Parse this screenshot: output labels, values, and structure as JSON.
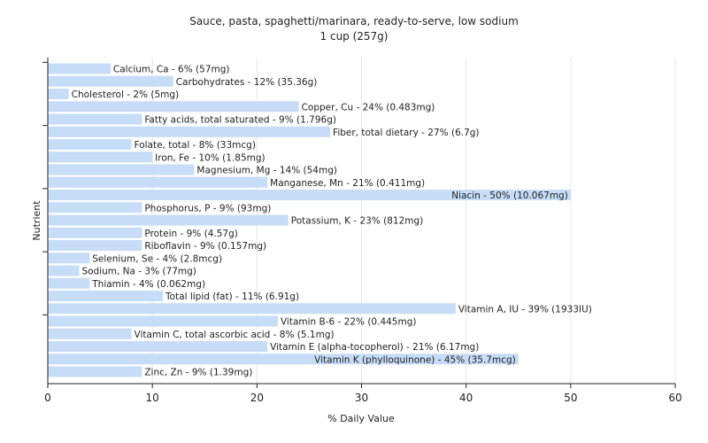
{
  "chart_data": {
    "type": "bar",
    "orientation": "horizontal",
    "title": "Sauce, pasta, spaghetti/marinara, ready-to-serve, low sodium",
    "subtitle": "1 cup (257g)",
    "xlabel": "% Daily Value",
    "ylabel": "Nutrient",
    "xlim": [
      0,
      60
    ],
    "xticks": [
      "0",
      "10",
      "20",
      "30",
      "40",
      "50",
      "60"
    ],
    "grid": true,
    "bar_color": "#c6dcf7",
    "categories": [
      "Calcium, Ca",
      "Carbohydrates",
      "Cholesterol",
      "Copper, Cu",
      "Fatty acids, total saturated",
      "Fiber, total dietary",
      "Folate, total",
      "Iron, Fe",
      "Magnesium, Mg",
      "Manganese, Mn",
      "Niacin",
      "Phosphorus, P",
      "Potassium, K",
      "Protein",
      "Riboflavin",
      "Selenium, Se",
      "Sodium, Na",
      "Thiamin",
      "Total lipid (fat)",
      "Vitamin A, IU",
      "Vitamin B-6",
      "Vitamin C, total ascorbic acid",
      "Vitamin E (alpha-tocopherol)",
      "Vitamin K (phylloquinone)",
      "Zinc, Zn"
    ],
    "values": [
      6,
      12,
      2,
      24,
      9,
      27,
      8,
      10,
      14,
      21,
      50,
      9,
      23,
      9,
      9,
      4,
      3,
      4,
      11,
      39,
      22,
      8,
      21,
      45,
      9
    ],
    "labels": [
      "Calcium, Ca - 6% (57mg)",
      "Carbohydrates - 12% (35.36g)",
      "Cholesterol - 2% (5mg)",
      "Copper, Cu - 24% (0.483mg)",
      "Fatty acids, total saturated - 9% (1.796g)",
      "Fiber, total dietary - 27% (6.7g)",
      "Folate, total - 8% (33mcg)",
      "Iron, Fe - 10% (1.85mg)",
      "Magnesium, Mg - 14% (54mg)",
      "Manganese, Mn - 21% (0.411mg)",
      "Niacin - 50% (10.067mg)",
      "Phosphorus, P - 9% (93mg)",
      "Potassium, K - 23% (812mg)",
      "Protein - 9% (4.57g)",
      "Riboflavin - 9% (0.157mg)",
      "Selenium, Se - 4% (2.8mcg)",
      "Sodium, Na - 3% (77mg)",
      "Thiamin - 4% (0.062mg)",
      "Total lipid (fat) - 11% (6.91g)",
      "Vitamin A, IU - 39% (1933IU)",
      "Vitamin B-6 - 22% (0.445mg)",
      "Vitamin C, total ascorbic acid - 8% (5.1mg)",
      "Vitamin E (alpha-tocopherol) - 21% (6.17mg)",
      "Vitamin K (phylloquinone) - 45% (35.7mcg)",
      "Zinc, Zn - 9% (1.39mg)"
    ]
  }
}
